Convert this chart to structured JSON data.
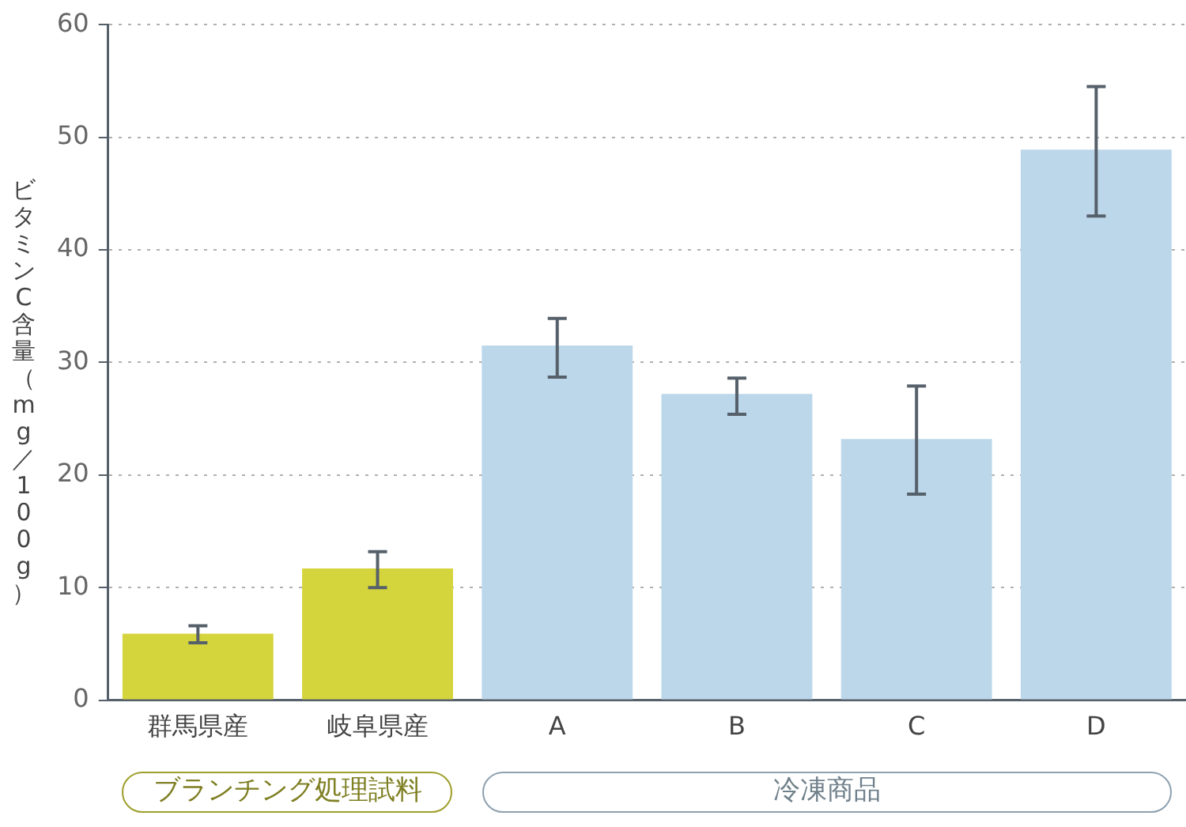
{
  "chart_data": {
    "type": "bar",
    "ylabel": "ビタミンC含量（mg／100g）",
    "categories": [
      "群馬県産",
      "岐阜県産",
      "A",
      "B",
      "C",
      "D"
    ],
    "values": [
      5.9,
      11.7,
      31.5,
      27.2,
      23.2,
      48.9
    ],
    "colors": [
      "#d4d43c",
      "#d4d43c",
      "#bcd7ea",
      "#bcd7ea",
      "#bcd7ea",
      "#bcd7ea"
    ],
    "errors": [
      [
        5.1,
        6.6
      ],
      [
        10.0,
        13.2
      ],
      [
        28.7,
        33.9
      ],
      [
        25.4,
        28.6
      ],
      [
        18.3,
        27.9
      ],
      [
        43.0,
        54.5
      ]
    ],
    "ylim": [
      0,
      60
    ],
    "yticks": [
      0,
      10,
      20,
      30,
      40,
      50,
      60
    ],
    "grid": "y",
    "annotations": [
      "ブランチング処理試料",
      "冷凍商品"
    ]
  }
}
